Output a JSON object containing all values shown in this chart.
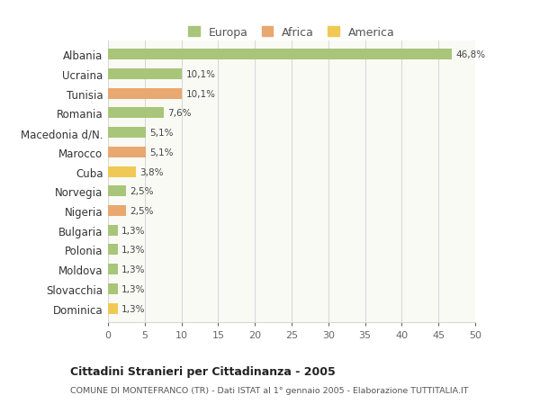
{
  "categories": [
    "Albania",
    "Ucraina",
    "Tunisia",
    "Romania",
    "Macedonia d/N.",
    "Marocco",
    "Cuba",
    "Norvegia",
    "Nigeria",
    "Bulgaria",
    "Polonia",
    "Moldova",
    "Slovacchia",
    "Dominica"
  ],
  "values": [
    46.8,
    10.1,
    10.1,
    7.6,
    5.1,
    5.1,
    3.8,
    2.5,
    2.5,
    1.3,
    1.3,
    1.3,
    1.3,
    1.3
  ],
  "labels": [
    "46,8%",
    "10,1%",
    "10,1%",
    "7,6%",
    "5,1%",
    "5,1%",
    "3,8%",
    "2,5%",
    "2,5%",
    "1,3%",
    "1,3%",
    "1,3%",
    "1,3%",
    "1,3%"
  ],
  "colors": [
    "#a8c57a",
    "#a8c57a",
    "#e8a870",
    "#a8c57a",
    "#a8c57a",
    "#e8a870",
    "#f0c955",
    "#a8c57a",
    "#e8a870",
    "#a8c57a",
    "#a8c57a",
    "#a8c57a",
    "#a8c57a",
    "#f0c955"
  ],
  "legend_labels": [
    "Europa",
    "Africa",
    "America"
  ],
  "legend_colors": [
    "#a8c57a",
    "#e8a870",
    "#f0c955"
  ],
  "title": "Cittadini Stranieri per Cittadinanza - 2005",
  "subtitle": "COMUNE DI MONTEFRANCO (TR) - Dati ISTAT al 1° gennaio 2005 - Elaborazione TUTTITALIA.IT",
  "xlim": [
    0,
    50
  ],
  "xticks": [
    0,
    5,
    10,
    15,
    20,
    25,
    30,
    35,
    40,
    45,
    50
  ],
  "bg_color": "#ffffff",
  "plot_bg_color": "#fafaf5",
  "grid_color": "#d8d8d8",
  "bar_height": 0.55
}
